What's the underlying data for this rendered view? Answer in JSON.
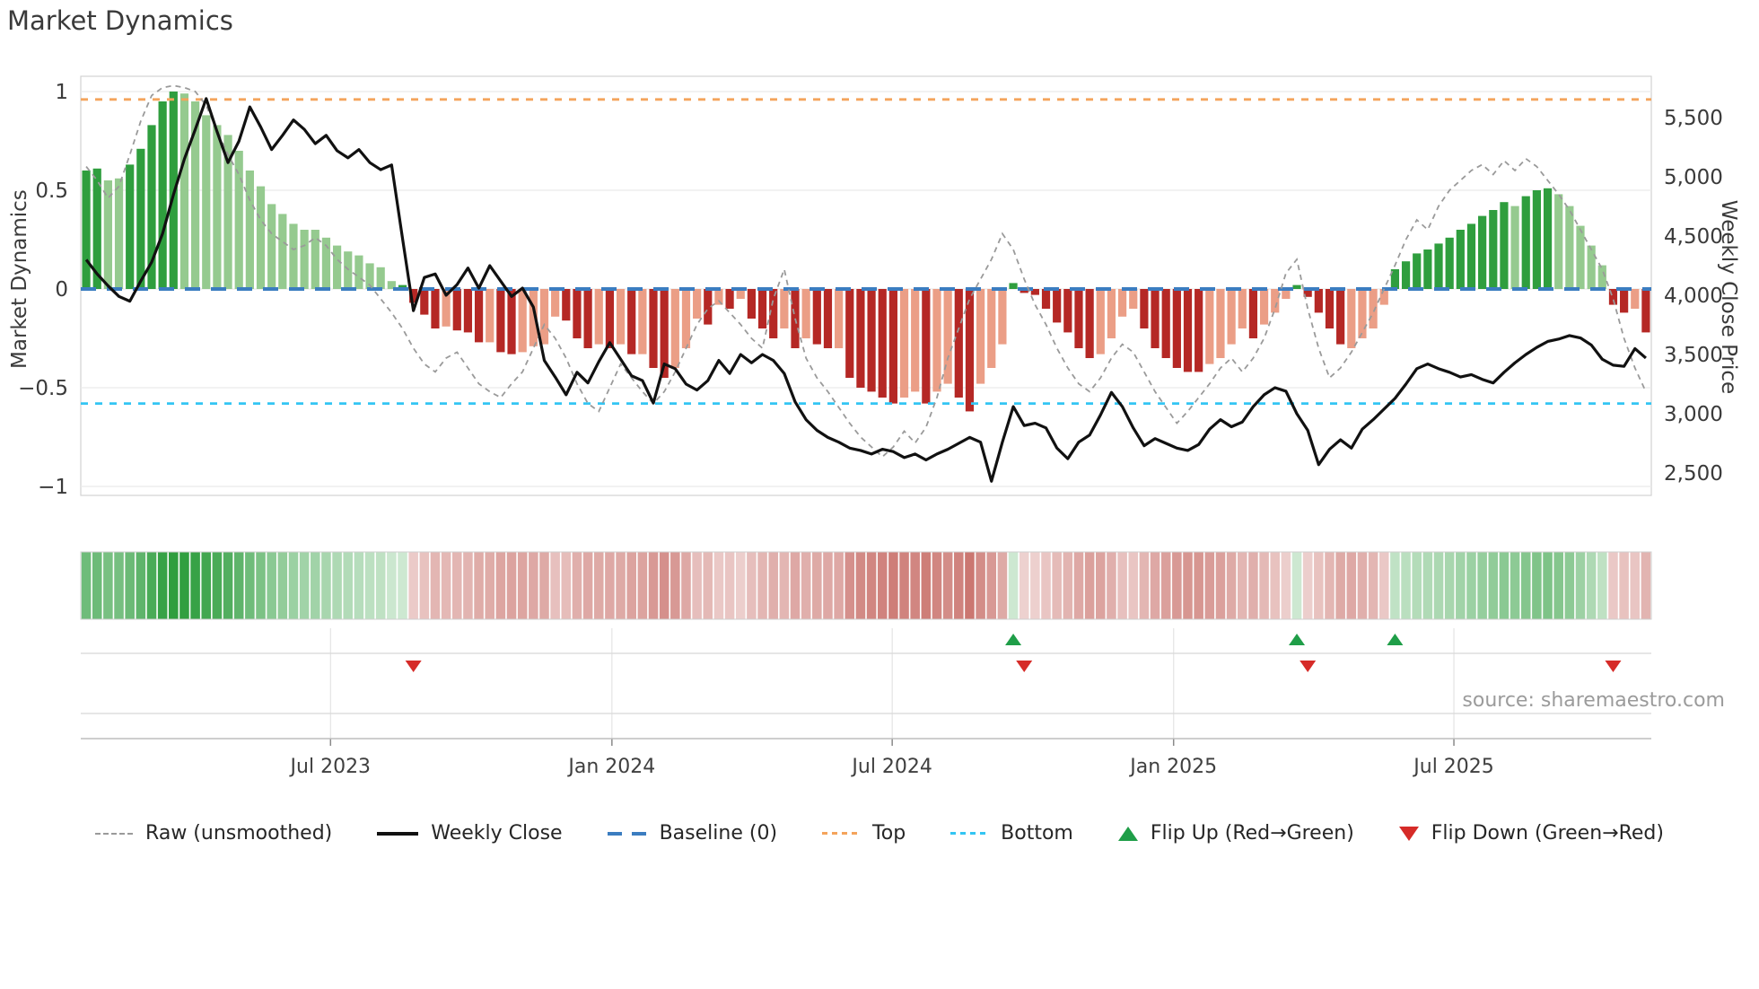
{
  "title": "Market Dynamics",
  "source": "source: sharemaestro.com",
  "axes": {
    "left_label": "Market Dynamics",
    "right_label": "Weekly Close Price",
    "left_ticks": [
      {
        "v": 1,
        "label": "1"
      },
      {
        "v": 0.5,
        "label": "0.5"
      },
      {
        "v": 0,
        "label": "0"
      },
      {
        "v": -0.5,
        "label": "−0.5"
      },
      {
        "v": -1,
        "label": "−1"
      }
    ],
    "right_ticks": [
      {
        "v": 5500,
        "label": "5,500"
      },
      {
        "v": 5000,
        "label": "5,000"
      },
      {
        "v": 4500,
        "label": "4,500"
      },
      {
        "v": 4000,
        "label": "4,000"
      },
      {
        "v": 3500,
        "label": "3,500"
      },
      {
        "v": 3000,
        "label": "3,000"
      },
      {
        "v": 2500,
        "label": "2,500"
      }
    ],
    "x_ticks": [
      {
        "week": 22.4,
        "label": "Jul 2023"
      },
      {
        "week": 48.2,
        "label": "Jan 2024"
      },
      {
        "week": 73.9,
        "label": "Jul 2024"
      },
      {
        "week": 99.7,
        "label": "Jan 2025"
      },
      {
        "week": 125.4,
        "label": "Jul 2025"
      }
    ]
  },
  "legend": {
    "items": [
      {
        "type": "raw",
        "label": "Raw (unsmoothed)"
      },
      {
        "type": "weekly",
        "label": "Weekly Close"
      },
      {
        "type": "baseline",
        "label": "Baseline (0)"
      },
      {
        "type": "top",
        "label": "Top"
      },
      {
        "type": "bottom",
        "label": "Bottom"
      },
      {
        "type": "flipup",
        "label": "Flip Up (Red→Green)"
      },
      {
        "type": "flipdown",
        "label": "Flip Down (Green→Red)"
      }
    ]
  },
  "colors": {
    "bar_dark_green": "#2f9e3e",
    "bar_light_green": "#95ca8f",
    "bar_dark_red": "#b52825",
    "bar_salmon": "#eb9e86",
    "price_line": "#111111",
    "raw_line": "#9a9a9a",
    "baseline": "#3b7dc0",
    "top_line": "#f4a45c",
    "bottom_line": "#33c5f3",
    "grid": "#ebebeb",
    "spine": "#d2d2d2",
    "tick_text": "#3a3a3a",
    "marker_up": "#1f9e48",
    "marker_down": "#d62b28"
  },
  "chart_data": {
    "type": "bar+line",
    "title": "Market Dynamics",
    "n_weeks": 144,
    "x_range": "weekly, early Feb 2023 – early Nov 2025",
    "left_axis": {
      "label": "Market Dynamics",
      "lim": [
        -1.05,
        1.08
      ]
    },
    "right_axis": {
      "label": "Weekly Close Price",
      "lim": [
        2350,
        5830
      ]
    },
    "reference_lines": {
      "baseline": 0,
      "top": 0.96,
      "bottom": -0.58
    },
    "legend_position": "bottom center",
    "grid": "horizontal only",
    "series": [
      {
        "name": "Dynamics (smoothed bars)",
        "values": [
          0.6,
          0.61,
          0.55,
          0.56,
          0.63,
          0.71,
          0.83,
          0.95,
          1.0,
          0.99,
          0.95,
          0.88,
          0.83,
          0.78,
          0.7,
          0.6,
          0.52,
          0.43,
          0.38,
          0.33,
          0.3,
          0.3,
          0.26,
          0.22,
          0.19,
          0.17,
          0.13,
          0.11,
          0.04,
          0.02,
          -0.07,
          -0.13,
          -0.2,
          -0.19,
          -0.21,
          -0.22,
          -0.27,
          -0.27,
          -0.32,
          -0.33,
          -0.32,
          -0.29,
          -0.28,
          -0.14,
          -0.16,
          -0.25,
          -0.3,
          -0.28,
          -0.3,
          -0.28,
          -0.33,
          -0.33,
          -0.4,
          -0.45,
          -0.4,
          -0.3,
          -0.15,
          -0.18,
          -0.08,
          -0.1,
          -0.05,
          -0.15,
          -0.2,
          -0.25,
          -0.2,
          -0.3,
          -0.25,
          -0.28,
          -0.3,
          -0.3,
          -0.45,
          -0.5,
          -0.52,
          -0.55,
          -0.58,
          -0.55,
          -0.52,
          -0.58,
          -0.52,
          -0.48,
          -0.55,
          -0.62,
          -0.48,
          -0.4,
          -0.28,
          0.03,
          -0.02,
          -0.03,
          -0.1,
          -0.17,
          -0.22,
          -0.3,
          -0.35,
          -0.33,
          -0.25,
          -0.14,
          -0.1,
          -0.2,
          -0.3,
          -0.35,
          -0.4,
          -0.42,
          -0.42,
          -0.38,
          -0.35,
          -0.28,
          -0.2,
          -0.25,
          -0.18,
          -0.12,
          -0.05,
          0.02,
          -0.04,
          -0.12,
          -0.2,
          -0.28,
          -0.3,
          -0.25,
          -0.2,
          -0.08,
          0.1,
          0.14,
          0.18,
          0.2,
          0.23,
          0.26,
          0.3,
          0.33,
          0.37,
          0.4,
          0.44,
          0.42,
          0.47,
          0.5,
          0.51,
          0.48,
          0.42,
          0.32,
          0.22,
          0.12,
          -0.08,
          -0.12,
          -0.1,
          -0.22
        ],
        "color_codes": [
          "d",
          "d",
          "l",
          "l",
          "d",
          "d",
          "d",
          "d",
          "d",
          "l",
          "l",
          "l",
          "l",
          "l",
          "l",
          "l",
          "l",
          "l",
          "l",
          "l",
          "l",
          "l",
          "l",
          "l",
          "l",
          "l",
          "l",
          "l",
          "l",
          "d",
          "r",
          "r",
          "r",
          "s",
          "r",
          "r",
          "r",
          "s",
          "r",
          "r",
          "s",
          "s",
          "s",
          "s",
          "r",
          "r",
          "r",
          "s",
          "r",
          "s",
          "r",
          "s",
          "r",
          "r",
          "s",
          "s",
          "s",
          "r",
          "s",
          "r",
          "s",
          "r",
          "r",
          "r",
          "s",
          "r",
          "s",
          "r",
          "r",
          "s",
          "r",
          "r",
          "r",
          "r",
          "r",
          "s",
          "s",
          "r",
          "s",
          "s",
          "r",
          "r",
          "s",
          "s",
          "s",
          "d",
          "r",
          "r",
          "r",
          "r",
          "r",
          "r",
          "r",
          "s",
          "s",
          "s",
          "s",
          "r",
          "r",
          "r",
          "r",
          "r",
          "r",
          "s",
          "s",
          "s",
          "s",
          "r",
          "s",
          "s",
          "s",
          "d",
          "r",
          "r",
          "r",
          "r",
          "s",
          "s",
          "s",
          "s",
          "d",
          "d",
          "d",
          "d",
          "d",
          "d",
          "d",
          "d",
          "d",
          "d",
          "d",
          "l",
          "d",
          "d",
          "d",
          "l",
          "l",
          "l",
          "l",
          "l",
          "r",
          "r",
          "s",
          "r"
        ]
      },
      {
        "name": "Raw (unsmoothed)",
        "values": [
          0.62,
          0.55,
          0.46,
          0.52,
          0.68,
          0.85,
          0.98,
          1.02,
          1.03,
          1.02,
          1.0,
          0.93,
          0.8,
          0.68,
          0.58,
          0.45,
          0.35,
          0.28,
          0.24,
          0.2,
          0.22,
          0.26,
          0.22,
          0.15,
          0.1,
          0.06,
          0.02,
          -0.05,
          -0.12,
          -0.2,
          -0.3,
          -0.38,
          -0.42,
          -0.35,
          -0.32,
          -0.4,
          -0.48,
          -0.52,
          -0.55,
          -0.48,
          -0.42,
          -0.3,
          -0.18,
          -0.25,
          -0.35,
          -0.48,
          -0.58,
          -0.62,
          -0.5,
          -0.38,
          -0.45,
          -0.52,
          -0.58,
          -0.52,
          -0.42,
          -0.3,
          -0.18,
          -0.1,
          -0.06,
          -0.12,
          -0.18,
          -0.25,
          -0.3,
          -0.05,
          0.1,
          -0.15,
          -0.35,
          -0.45,
          -0.52,
          -0.6,
          -0.68,
          -0.75,
          -0.8,
          -0.85,
          -0.8,
          -0.72,
          -0.78,
          -0.7,
          -0.55,
          -0.35,
          -0.2,
          -0.05,
          0.05,
          0.15,
          0.28,
          0.2,
          0.05,
          -0.08,
          -0.18,
          -0.3,
          -0.4,
          -0.48,
          -0.52,
          -0.45,
          -0.35,
          -0.28,
          -0.32,
          -0.42,
          -0.52,
          -0.6,
          -0.68,
          -0.62,
          -0.55,
          -0.48,
          -0.4,
          -0.35,
          -0.42,
          -0.35,
          -0.25,
          -0.1,
          0.08,
          0.15,
          -0.1,
          -0.3,
          -0.45,
          -0.4,
          -0.32,
          -0.22,
          -0.12,
          0.0,
          0.12,
          0.25,
          0.35,
          0.3,
          0.42,
          0.5,
          0.55,
          0.6,
          0.63,
          0.58,
          0.65,
          0.6,
          0.66,
          0.62,
          0.55,
          0.48,
          0.4,
          0.3,
          0.2,
          0.1,
          -0.05,
          -0.25,
          -0.4,
          -0.52
        ]
      },
      {
        "name": "Weekly Close",
        "values": [
          4300,
          4180,
          4080,
          3990,
          3950,
          4120,
          4280,
          4520,
          4850,
          5150,
          5400,
          5660,
          5380,
          5120,
          5300,
          5590,
          5420,
          5230,
          5350,
          5480,
          5400,
          5280,
          5350,
          5220,
          5160,
          5230,
          5120,
          5060,
          5100,
          4480,
          3870,
          4150,
          4180,
          4000,
          4090,
          4230,
          4060,
          4250,
          4120,
          3990,
          4060,
          3900,
          3450,
          3310,
          3160,
          3350,
          3260,
          3440,
          3600,
          3460,
          3320,
          3280,
          3090,
          3420,
          3380,
          3250,
          3200,
          3280,
          3450,
          3340,
          3500,
          3430,
          3500,
          3450,
          3340,
          3100,
          2950,
          2860,
          2800,
          2760,
          2710,
          2690,
          2660,
          2700,
          2680,
          2630,
          2660,
          2610,
          2660,
          2700,
          2750,
          2800,
          2760,
          2430,
          2760,
          3060,
          2900,
          2920,
          2880,
          2710,
          2620,
          2760,
          2820,
          2990,
          3180,
          3060,
          2880,
          2730,
          2790,
          2750,
          2710,
          2690,
          2740,
          2870,
          2950,
          2890,
          2930,
          3060,
          3160,
          3220,
          3190,
          3000,
          2860,
          2570,
          2700,
          2780,
          2710,
          2870,
          2950,
          3040,
          3130,
          3250,
          3380,
          3420,
          3380,
          3350,
          3310,
          3330,
          3290,
          3260,
          3350,
          3430,
          3500,
          3560,
          3610,
          3630,
          3660,
          3640,
          3580,
          3460,
          3410,
          3400,
          3550,
          3470
        ]
      }
    ],
    "markers": {
      "flip_up_weeks": [
        85,
        111,
        120
      ],
      "flip_down_weeks": [
        30,
        86,
        112,
        140
      ]
    },
    "heatmap": "same 144 weekly values as bars; color intensity = |value|, green when positive, red when negative"
  }
}
